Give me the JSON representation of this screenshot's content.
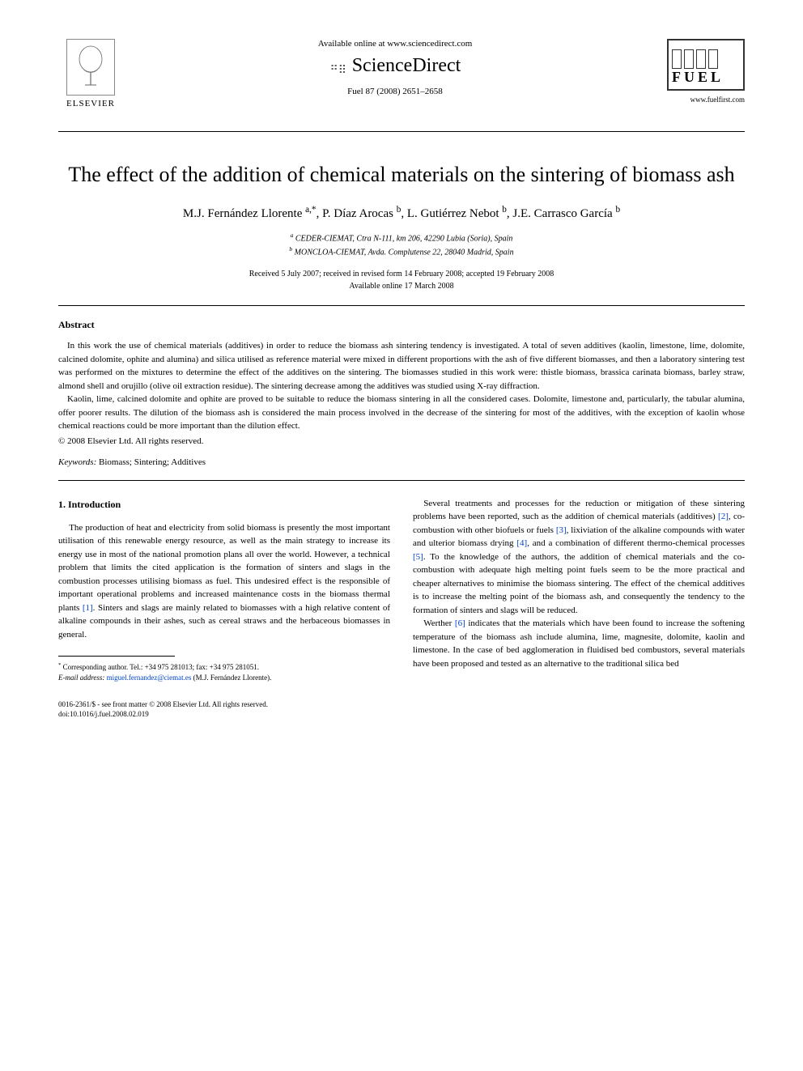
{
  "header": {
    "elsevier_label": "ELSEVIER",
    "available_online": "Available online at www.sciencedirect.com",
    "sciencedirect": "ScienceDirect",
    "journal_ref": "Fuel 87 (2008) 2651–2658",
    "fuel_label": "FUEL",
    "fuel_url": "www.fuelfirst.com"
  },
  "title": "The effect of the addition of chemical materials on the sintering of biomass ash",
  "authors_html": "M.J. Fernández Llorente <sup>a,*</sup>, P. Díaz Arocas <sup>b</sup>, L. Gutiérrez Nebot <sup>b</sup>, J.E. Carrasco García <sup>b</sup>",
  "affiliations": {
    "a": "CEDER-CIEMAT, Ctra N-111, km 206, 42290 Lubia (Soria), Spain",
    "b": "MONCLOA-CIEMAT, Avda. Complutense 22, 28040 Madrid, Spain"
  },
  "dates": {
    "line1": "Received 5 July 2007; received in revised form 14 February 2008; accepted 19 February 2008",
    "line2": "Available online 17 March 2008"
  },
  "abstract": {
    "heading": "Abstract",
    "p1": "In this work the use of chemical materials (additives) in order to reduce the biomass ash sintering tendency is investigated. A total of seven additives (kaolin, limestone, lime, dolomite, calcined dolomite, ophite and alumina) and silica utilised as reference material were mixed in different proportions with the ash of five different biomasses, and then a laboratory sintering test was performed on the mixtures to determine the effect of the additives on the sintering. The biomasses studied in this work were: thistle biomass, brassica carinata biomass, barley straw, almond shell and orujillo (olive oil extraction residue). The sintering decrease among the additives was studied using X-ray diffraction.",
    "p2": "Kaolin, lime, calcined dolomite and ophite are proved to be suitable to reduce the biomass sintering in all the considered cases. Dolomite, limestone and, particularly, the tabular alumina, offer poorer results. The dilution of the biomass ash is considered the main process involved in the decrease of the sintering for most of the additives, with the exception of kaolin whose chemical reactions could be more important than the dilution effect.",
    "copyright": "© 2008 Elsevier Ltd. All rights reserved."
  },
  "keywords": {
    "label": "Keywords:",
    "text": " Biomass; Sintering; Additives"
  },
  "section1": {
    "heading": "1. Introduction",
    "left_p1": "The production of heat and electricity from solid biomass is presently the most important utilisation of this renewable energy resource, as well as the main strategy to increase its energy use in most of the national promotion plans all over the world. However, a technical problem that limits the cited application is the formation of sinters and slags in the combustion processes utilising biomass as fuel. This undesired effect is the responsible of important operational problems and increased maintenance costs in the biomass thermal plants ",
    "left_ref1": "[1]",
    "left_p1b": ". Sinters and slags are mainly related to biomasses with a high relative content of alkaline compounds in their ashes, such as cereal straws and the herbaceous biomasses in general.",
    "right_p1": "Several treatments and processes for the reduction or mitigation of these sintering problems have been reported, such as the addition of chemical materials (additives) ",
    "right_ref2": "[2]",
    "right_p1b": ", co-combustion with other biofuels or fuels ",
    "right_ref3": "[3]",
    "right_p1c": ", lixiviation of the alkaline compounds with water and ulterior biomass drying ",
    "right_ref4": "[4]",
    "right_p1d": ", and a combination of different thermo-chemical processes ",
    "right_ref5": "[5]",
    "right_p1e": ". To the knowledge of the authors, the addition of chemical materials and the co-combustion with adequate high melting point fuels seem to be the more practical and cheaper alternatives to minimise the biomass sintering. The effect of the chemical additives is to increase the melting point of the biomass ash, and consequently the tendency to the formation of sinters and slags will be reduced.",
    "right_p2a": "Werther ",
    "right_ref6": "[6]",
    "right_p2b": " indicates that the materials which have been found to increase the softening temperature of the biomass ash include alumina, lime, magnesite, dolomite, kaolin and limestone. In the case of bed agglomeration in fluidised bed combustors, several materials have been proposed and tested as an alternative to the traditional silica bed"
  },
  "footnote": {
    "corresponding": "Corresponding author. Tel.: +34 975 281013; fax: +34 975 281051.",
    "email_label": "E-mail address:",
    "email": "miguel.fernandez@ciemat.es",
    "email_person": " (M.J. Fernández Llorente)."
  },
  "footer": {
    "line1": "0016-2361/$ - see front matter © 2008 Elsevier Ltd. All rights reserved.",
    "line2": "doi:10.1016/j.fuel.2008.02.019"
  }
}
